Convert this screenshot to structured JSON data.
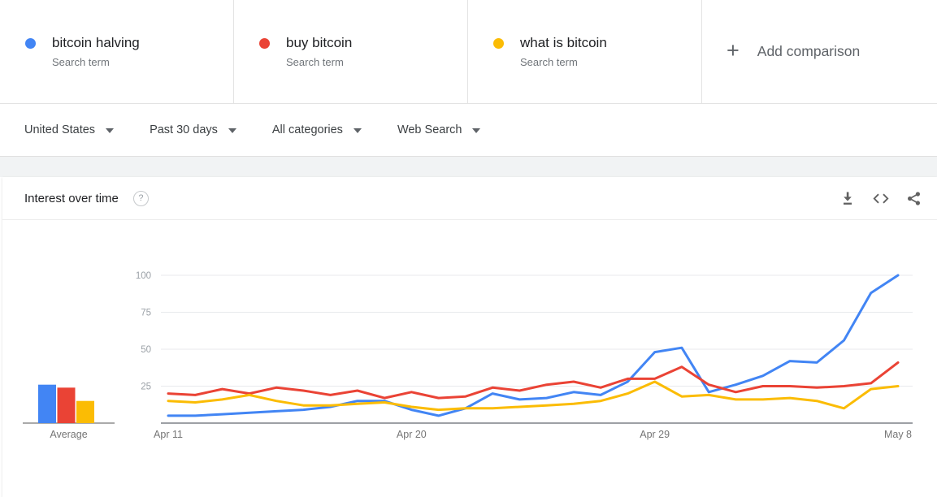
{
  "terms": [
    {
      "label": "bitcoin halving",
      "sublabel": "Search term",
      "color": "#4285f4"
    },
    {
      "label": "buy bitcoin",
      "sublabel": "Search term",
      "color": "#ea4335"
    },
    {
      "label": "what is bitcoin",
      "sublabel": "Search term",
      "color": "#fbbc04"
    }
  ],
  "add_comparison": {
    "plus_glyph": "+",
    "label": "Add comparison"
  },
  "filters": [
    {
      "label": "United States"
    },
    {
      "label": "Past 30 days"
    },
    {
      "label": "All categories"
    },
    {
      "label": "Web Search"
    }
  ],
  "panel": {
    "title": "Interest over time",
    "help_glyph": "?",
    "icons": [
      "download-icon",
      "embed-icon",
      "share-icon"
    ]
  },
  "chart_data": {
    "type": "line",
    "title": "Interest over time",
    "xlabel": "",
    "ylabel": "",
    "ylim": [
      0,
      100
    ],
    "yticks": [
      25,
      50,
      75,
      100
    ],
    "grid": true,
    "legend_position": "none",
    "x": [
      "Apr 11",
      "Apr 12",
      "Apr 13",
      "Apr 14",
      "Apr 15",
      "Apr 16",
      "Apr 17",
      "Apr 18",
      "Apr 19",
      "Apr 20",
      "Apr 21",
      "Apr 22",
      "Apr 23",
      "Apr 24",
      "Apr 25",
      "Apr 26",
      "Apr 27",
      "Apr 28",
      "Apr 29",
      "Apr 30",
      "May 1",
      "May 2",
      "May 3",
      "May 4",
      "May 5",
      "May 6",
      "May 7",
      "May 8"
    ],
    "tick_labels": [
      "Apr 11",
      "Apr 20",
      "Apr 29",
      "May 8"
    ],
    "tick_indices": [
      0,
      9,
      18,
      27
    ],
    "series": [
      {
        "name": "bitcoin halving",
        "color": "#4285f4",
        "values": [
          5,
          5,
          6,
          7,
          8,
          9,
          11,
          15,
          15,
          9,
          5,
          10,
          20,
          16,
          17,
          21,
          19,
          28,
          48,
          51,
          21,
          26,
          32,
          42,
          41,
          56,
          88,
          100
        ]
      },
      {
        "name": "buy bitcoin",
        "color": "#ea4335",
        "values": [
          20,
          19,
          23,
          20,
          24,
          22,
          19,
          22,
          17,
          21,
          17,
          18,
          24,
          22,
          26,
          28,
          24,
          30,
          30,
          38,
          26,
          21,
          25,
          25,
          24,
          25,
          27,
          41
        ]
      },
      {
        "name": "what is bitcoin",
        "color": "#fbbc04",
        "values": [
          15,
          14,
          16,
          19,
          15,
          12,
          12,
          13,
          14,
          11,
          9,
          10,
          10,
          11,
          12,
          13,
          15,
          20,
          28,
          18,
          19,
          16,
          16,
          17,
          15,
          10,
          23,
          25
        ]
      }
    ],
    "averages": {
      "label": "Average",
      "values": [
        26,
        24,
        15
      ]
    }
  }
}
